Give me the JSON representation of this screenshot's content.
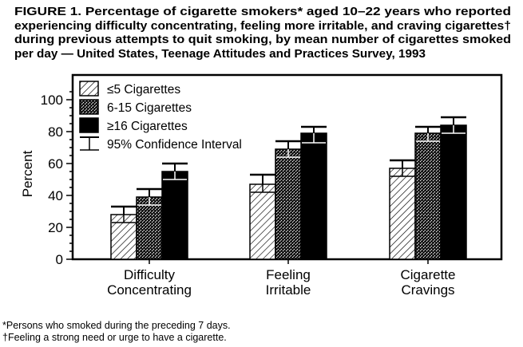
{
  "figure": {
    "title_lines": [
      "FIGURE 1. Percentage of cigarette smokers* aged 10–22 years who reported",
      "experiencing difficulty concentrating, feeling more irritable, and craving cigarettes†",
      "during previous attempts to quit smoking, by mean number of cigarettes smoked",
      "per day — United States, Teenage Attitudes and Practices Survey, 1993"
    ],
    "footnotes": [
      "*Persons who smoked during the preceding 7 days.",
      "†Feeling a strong need or urge to have a cigarette."
    ]
  },
  "chart_data": {
    "type": "bar",
    "ylabel": "Percent",
    "xlabel": "",
    "ylim": [
      0,
      110
    ],
    "yticks": [
      0,
      20,
      40,
      60,
      80,
      100
    ],
    "categories": [
      [
        "Difficulty",
        "Concentrating"
      ],
      [
        "Feeling",
        "Irritable"
      ],
      [
        "Cigarette",
        "Cravings"
      ]
    ],
    "series": [
      {
        "name": "≤5 Cigarettes",
        "pattern": "hatched",
        "values": [
          28,
          47,
          57
        ],
        "ci_low": [
          23,
          42,
          52
        ],
        "ci_high": [
          33,
          53,
          62
        ]
      },
      {
        "name": "6-15 Cigarettes",
        "pattern": "stippled",
        "values": [
          39,
          69,
          79
        ],
        "ci_low": [
          34,
          64,
          74
        ],
        "ci_high": [
          44,
          74,
          83
        ]
      },
      {
        "name": "≥16 Cigarettes",
        "pattern": "solid",
        "values": [
          55,
          79,
          84
        ],
        "ci_low": [
          50,
          73,
          79
        ],
        "ci_high": [
          60,
          83,
          89
        ]
      }
    ],
    "legend": {
      "position": "top-left",
      "ci_label": "95% Confidence Interval"
    },
    "grid": false,
    "colors": {
      "ink": "#000000",
      "paper": "#ffffff"
    }
  }
}
